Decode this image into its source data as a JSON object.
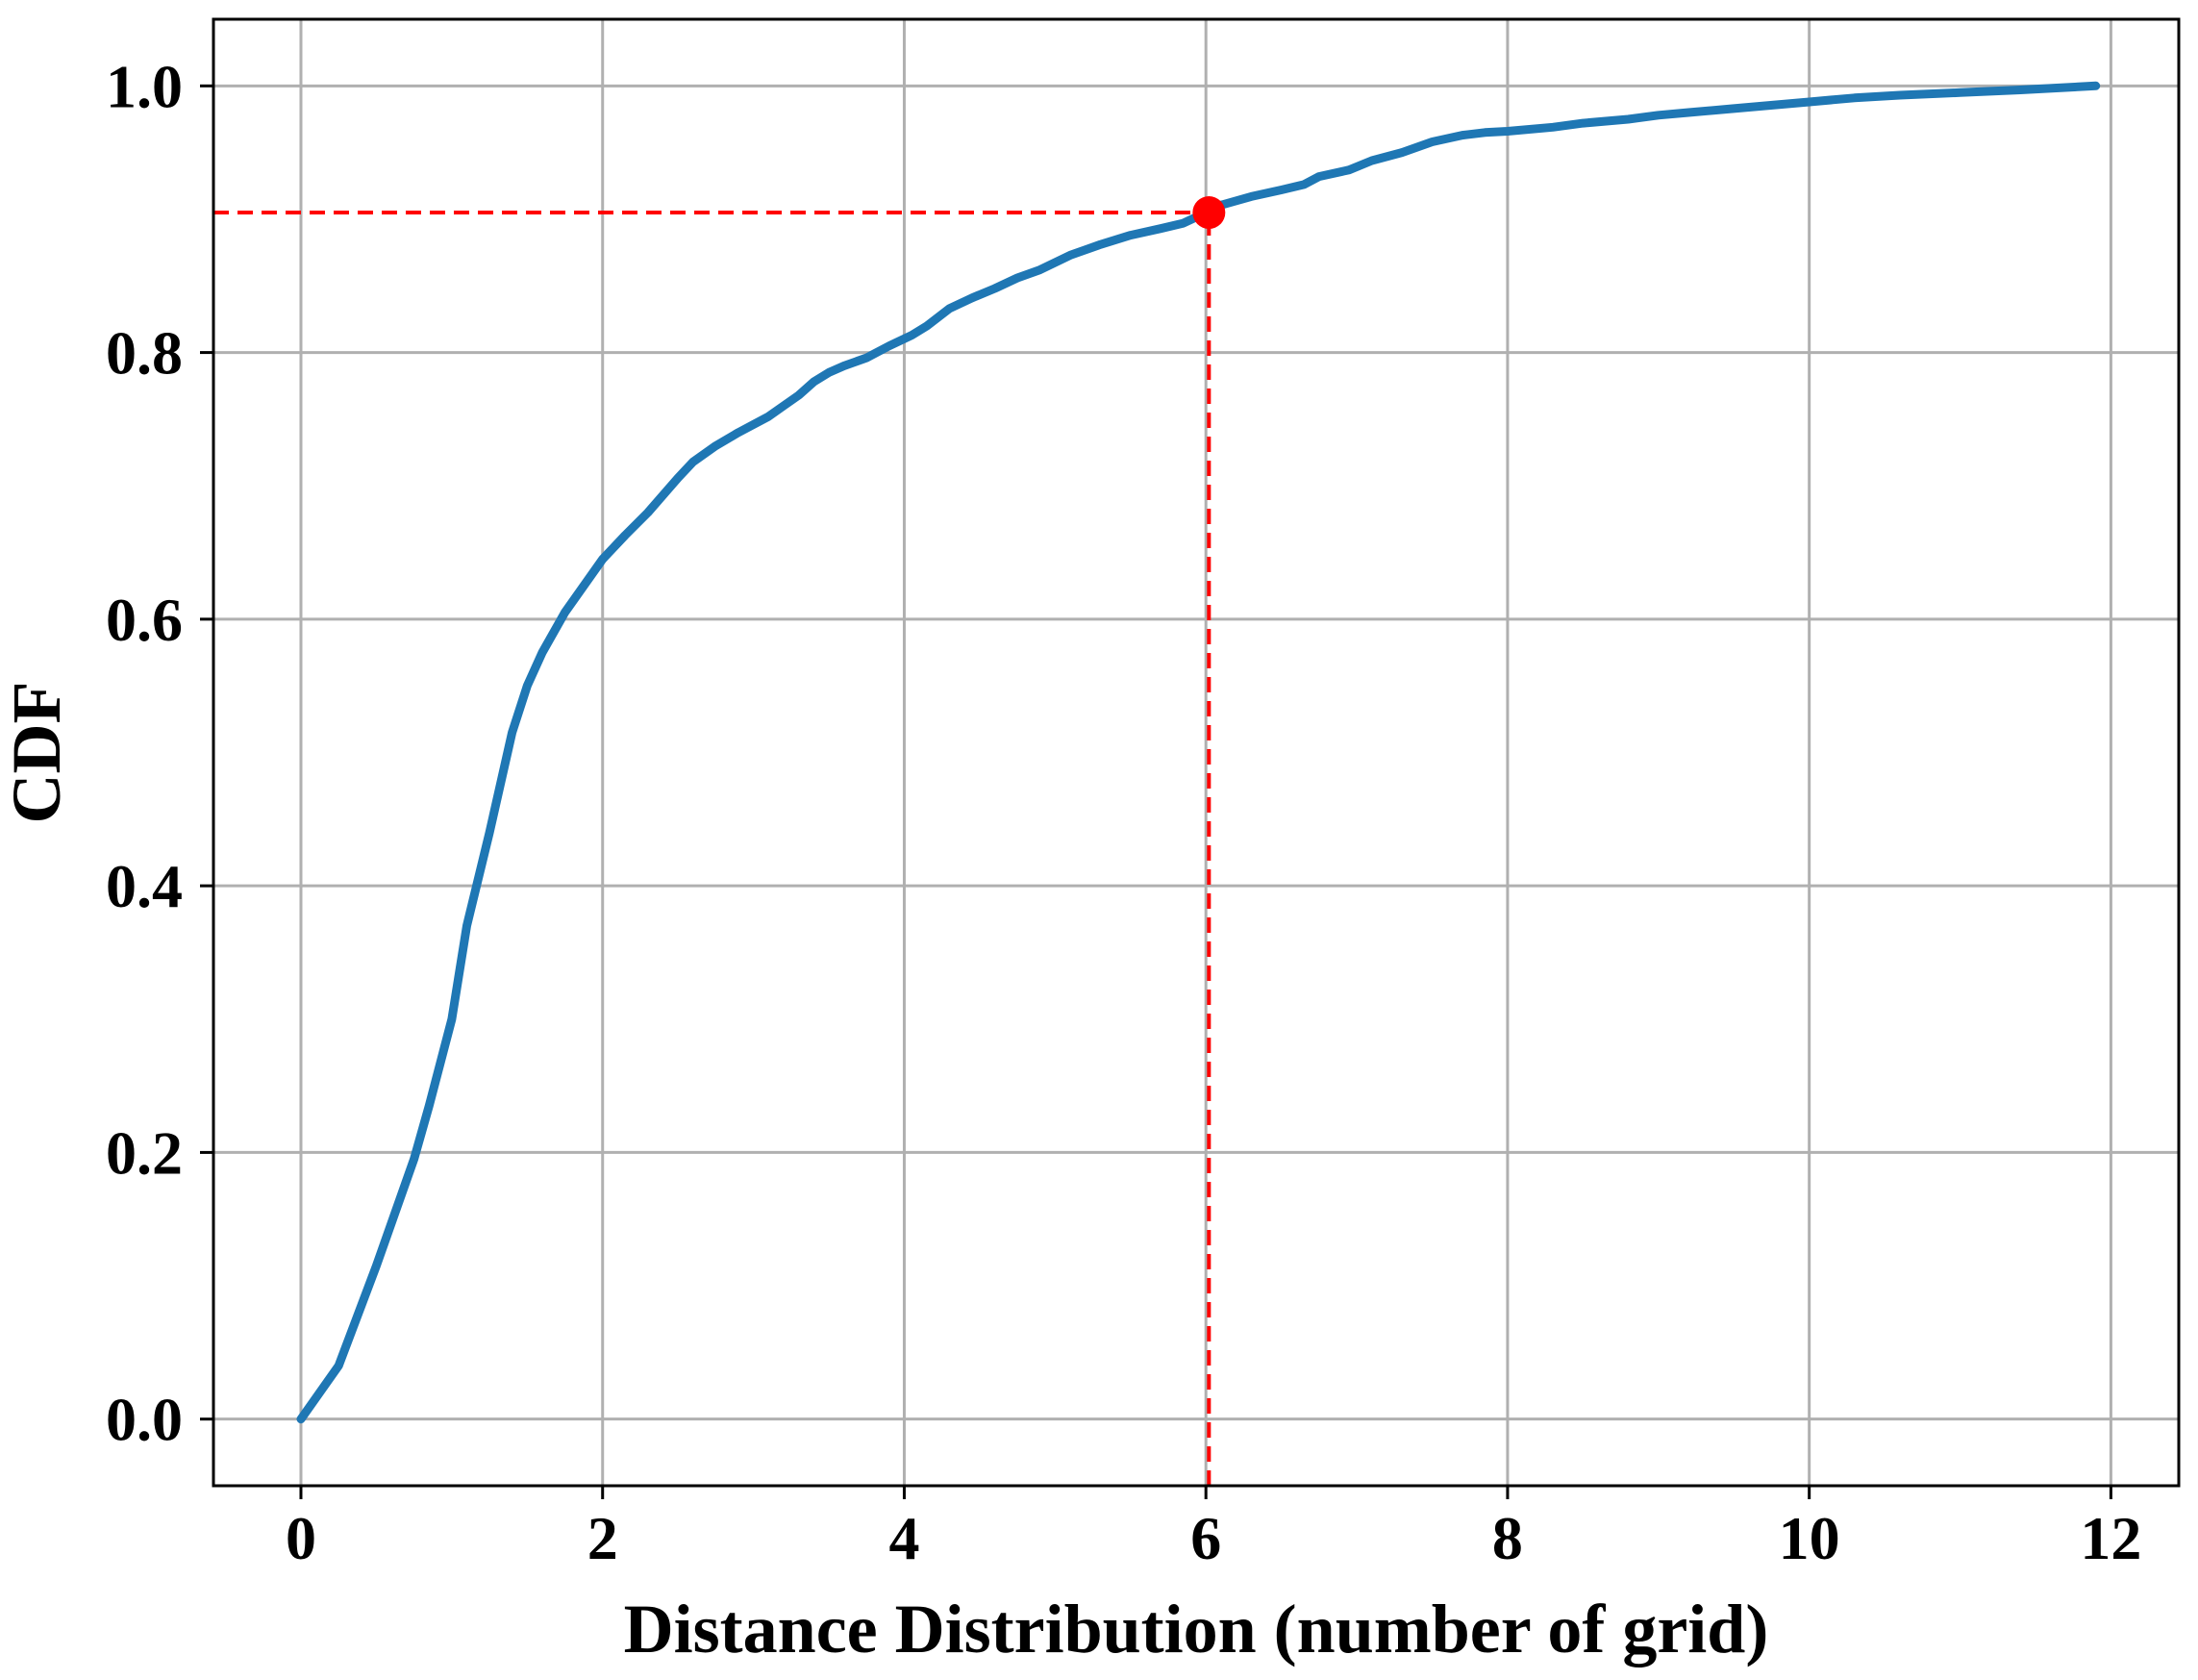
{
  "chart_data": {
    "type": "line",
    "title": "",
    "xlabel": "Distance Distribution (number of grid)",
    "ylabel": "CDF",
    "xlim": [
      -0.58,
      12.45
    ],
    "ylim": [
      -0.05,
      1.05
    ],
    "xticks": [
      0,
      2,
      4,
      6,
      8,
      10,
      12
    ],
    "xtick_labels": [
      "0",
      "2",
      "4",
      "6",
      "8",
      "10",
      "12"
    ],
    "yticks": [
      0.0,
      0.2,
      0.4,
      0.6,
      0.8,
      1.0
    ],
    "ytick_labels": [
      "0.0",
      "0.2",
      "0.4",
      "0.6",
      "0.8",
      "1.0"
    ],
    "grid": true,
    "legend": "none",
    "series": [
      {
        "color": "#1f77b4",
        "x": [
          0,
          0.25,
          0.5,
          0.75,
          0.85,
          1.0,
          1.1,
          1.25,
          1.4,
          1.5,
          1.6,
          1.75,
          2.0,
          2.15,
          2.3,
          2.5,
          2.6,
          2.75,
          2.9,
          3.1,
          3.2,
          3.3,
          3.4,
          3.5,
          3.6,
          3.75,
          3.9,
          4.05,
          4.15,
          4.3,
          4.45,
          4.6,
          4.75,
          4.9,
          5.1,
          5.3,
          5.5,
          5.7,
          5.85,
          6.0,
          6.05,
          6.3,
          6.5,
          6.65,
          6.75,
          6.95,
          7.1,
          7.3,
          7.5,
          7.7,
          7.85,
          8.0,
          8.3,
          8.5,
          8.8,
          9.0,
          9.2,
          9.5,
          9.7,
          10.0,
          10.3,
          10.6,
          11.0,
          11.4,
          11.9
        ],
        "y": [
          0.0,
          0.04,
          0.115,
          0.195,
          0.235,
          0.3,
          0.37,
          0.44,
          0.515,
          0.55,
          0.575,
          0.605,
          0.645,
          0.663,
          0.68,
          0.706,
          0.718,
          0.73,
          0.74,
          0.752,
          0.76,
          0.768,
          0.778,
          0.785,
          0.79,
          0.796,
          0.805,
          0.813,
          0.82,
          0.833,
          0.841,
          0.848,
          0.856,
          0.862,
          0.873,
          0.881,
          0.888,
          0.893,
          0.897,
          0.905,
          0.909,
          0.917,
          0.922,
          0.926,
          0.932,
          0.937,
          0.944,
          0.95,
          0.958,
          0.963,
          0.965,
          0.966,
          0.969,
          0.972,
          0.975,
          0.978,
          0.98,
          0.983,
          0.985,
          0.988,
          0.991,
          0.993,
          0.995,
          0.997,
          1.0
        ]
      }
    ],
    "highlight_point": {
      "x": 6.02,
      "y": 0.905,
      "color": "#ff0000"
    },
    "reference_lines": [
      {
        "orientation": "horizontal",
        "value": 0.905,
        "from": -0.58,
        "to": 6.02,
        "color": "#ff0000",
        "style": "dashed"
      },
      {
        "orientation": "vertical",
        "value": 6.02,
        "from": -0.05,
        "to": 0.905,
        "color": "#ff0000",
        "style": "dashed"
      }
    ]
  }
}
